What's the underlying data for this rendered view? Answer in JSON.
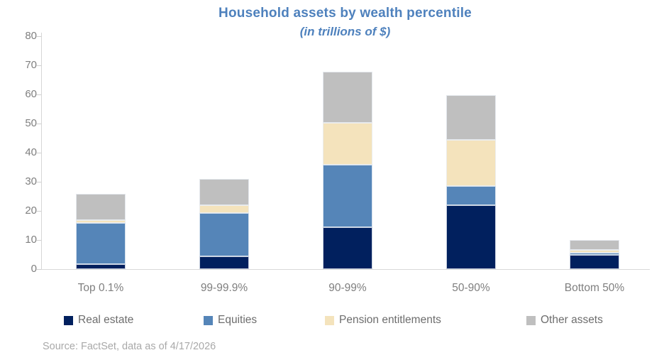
{
  "chart_data": {
    "type": "bar",
    "stacked": true,
    "title": "Household assets by wealth percentile",
    "subtitle": "(in trillions of $)",
    "categories": [
      "Top 0.1%",
      "99-99.9%",
      "90-99%",
      "50-90%",
      "Bottom 50%"
    ],
    "series": [
      {
        "name": "Real estate",
        "color": "#01205e",
        "values": [
          1.8,
          4.3,
          14.3,
          22.0,
          4.8
        ]
      },
      {
        "name": "Equities",
        "color": "#5585b8",
        "values": [
          14.0,
          15.0,
          21.5,
          6.5,
          0.8
        ]
      },
      {
        "name": "Pension entitlements",
        "color": "#f4e3bc",
        "values": [
          1.0,
          2.7,
          14.5,
          16.0,
          1.0
        ]
      },
      {
        "name": "Other assets",
        "color": "#bfbfbf",
        "values": [
          9.0,
          9.0,
          17.5,
          15.3,
          3.4
        ]
      }
    ],
    "totals": [
      25.8,
      31.0,
      67.8,
      59.8,
      10.0
    ],
    "xlabel": "",
    "ylabel": "",
    "ylim": [
      0,
      80
    ],
    "ytick_step": 10,
    "ytick_labels": [
      "0",
      "10",
      "20",
      "30",
      "40",
      "50",
      "60",
      "70",
      "80"
    ],
    "grid": false,
    "legend_position": "bottom"
  },
  "source": "Source: FactSet, data as of 4/17/2026",
  "colors": {
    "title_text": "#4e81bd",
    "axis_tick_text": "#7f7f7f",
    "category_text": "#7f7f7f",
    "legend_text": "#6d6d6d",
    "source_text": "#a9a9a9"
  }
}
